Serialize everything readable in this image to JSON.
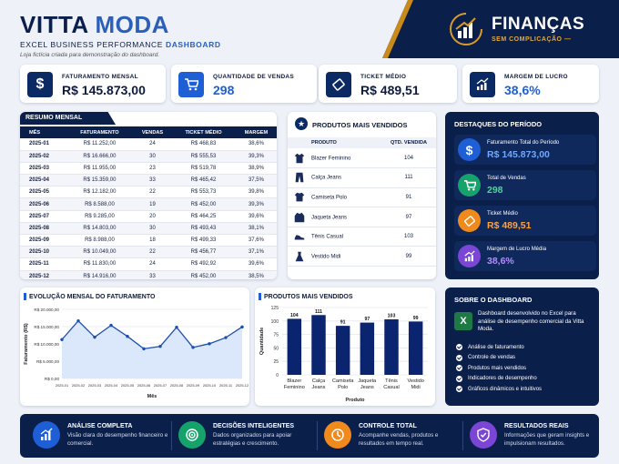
{
  "header": {
    "title_part1": "VITTA",
    "title_part2": "MODA",
    "subtitle_part1": "EXCEL BUSINESS PERFORMANCE",
    "subtitle_part2": "DASHBOARD",
    "note": "Loja fictícia criada para demonstração do dashboard."
  },
  "brand": {
    "title": "FINANÇAS",
    "tagline": "SEM COMPLICAÇÃO"
  },
  "kpis": [
    {
      "label": "FATURAMENTO MENSAL",
      "value": "R$ 145.873,00",
      "icon": "dollar-icon"
    },
    {
      "label": "QUANTIDADE DE VENDAS",
      "value": "298",
      "icon": "cart-icon"
    },
    {
      "label": "TICKET MÉDIO",
      "value": "R$ 489,51",
      "icon": "ticket-icon"
    },
    {
      "label": "MARGEM DE LUCRO",
      "value": "38,6%",
      "icon": "growth-chart-icon"
    }
  ],
  "summary": {
    "title": "RESUMO MENSAL",
    "columns": [
      "MÊS",
      "FATURAMENTO",
      "VENDAS",
      "TICKET MÉDIO",
      "MARGEM"
    ],
    "rows": [
      [
        "2025-01",
        "R$ 11.252,00",
        "24",
        "R$ 468,83",
        "38,6%"
      ],
      [
        "2025-02",
        "R$ 16.666,00",
        "30",
        "R$ 555,53",
        "39,3%"
      ],
      [
        "2025-03",
        "R$ 11.955,00",
        "23",
        "R$ 519,78",
        "38,9%"
      ],
      [
        "2025-04",
        "R$ 15.359,00",
        "33",
        "R$ 465,42",
        "37,5%"
      ],
      [
        "2025-05",
        "R$ 12.182,00",
        "22",
        "R$ 553,73",
        "39,8%"
      ],
      [
        "2025-06",
        "R$ 8.588,00",
        "19",
        "R$ 452,00",
        "39,3%"
      ],
      [
        "2025-07",
        "R$ 9.285,00",
        "20",
        "R$ 464,25",
        "39,6%"
      ],
      [
        "2025-08",
        "R$ 14.803,00",
        "30",
        "R$ 493,43",
        "38,1%"
      ],
      [
        "2025-09",
        "R$ 8.988,00",
        "18",
        "R$ 499,33",
        "37,6%"
      ],
      [
        "2025-10",
        "R$ 10.049,00",
        "22",
        "R$ 456,77",
        "37,1%"
      ],
      [
        "2025-11",
        "R$ 11.830,00",
        "24",
        "R$ 492,92",
        "39,6%"
      ],
      [
        "2025-12",
        "R$ 14.916,00",
        "33",
        "R$ 452,00",
        "38,5%"
      ]
    ]
  },
  "top_products": {
    "title": "PRODUTOS MAIS VENDIDOS",
    "columns": [
      "PRODUTO",
      "QTD. VENDIDA"
    ],
    "rows": [
      {
        "name": "Blazer Feminino",
        "qty": "104",
        "icon": "blazer-icon"
      },
      {
        "name": "Calça Jeans",
        "qty": "111",
        "icon": "jeans-icon"
      },
      {
        "name": "Camiseta Polo",
        "qty": "91",
        "icon": "polo-shirt-icon"
      },
      {
        "name": "Jaqueta Jeans",
        "qty": "97",
        "icon": "jacket-icon"
      },
      {
        "name": "Tênis Casual",
        "qty": "103",
        "icon": "sneaker-icon"
      },
      {
        "name": "Vestido Midi",
        "qty": "99",
        "icon": "dress-icon"
      }
    ]
  },
  "highlights": {
    "title": "DESTAQUES DO PERÍODO",
    "items": [
      {
        "label": "Faturamento Total do Período",
        "value": "R$ 145.873,00",
        "color": "#1f5fd6",
        "valcolor": "#6fa8ff",
        "icon": "dollar-icon"
      },
      {
        "label": "Total de Vendas",
        "value": "298",
        "color": "#16a36b",
        "valcolor": "#4fd49a",
        "icon": "cart-icon"
      },
      {
        "label": "Ticket Médio",
        "value": "R$ 489,51",
        "color": "#f08a1c",
        "valcolor": "#ffa23a",
        "icon": "ticket-icon"
      },
      {
        "label": "Margem de Lucro Média",
        "value": "38,6%",
        "color": "#7b45d6",
        "valcolor": "#b48cff",
        "icon": "growth-chart-icon"
      }
    ]
  },
  "line_chart": {
    "title": "EVOLUÇÃO MENSAL DO FATURAMENTO"
  },
  "bar_chart": {
    "title": "PRODUTOS MAIS VENDIDOS"
  },
  "chart_data": [
    {
      "type": "line",
      "title": "EVOLUÇÃO MENSAL DO FATURAMENTO",
      "xlabel": "Mês",
      "ylabel": "Faturamento (R$)",
      "x": [
        "2025-01",
        "2025-02",
        "2025-03",
        "2025-04",
        "2025-05",
        "2025-06",
        "2025-07",
        "2025-08",
        "2025-09",
        "2025-10",
        "2025-11",
        "2025-12"
      ],
      "values": [
        11252,
        16666,
        11955,
        15359,
        12182,
        8588,
        9285,
        14803,
        8988,
        10049,
        11830,
        14916
      ],
      "yticks": [
        "R$ 0,00",
        "R$ 5.000,00",
        "R$ 10.000,00",
        "R$ 15.000,00",
        "R$ 20.000,00"
      ],
      "ylim": [
        0,
        20000
      ],
      "grid": true
    },
    {
      "type": "bar",
      "title": "PRODUTOS MAIS VENDIDOS",
      "xlabel": "Produto",
      "ylabel": "Quantidade",
      "categories": [
        [
          "Blazer",
          "Feminino"
        ],
        [
          "Calça",
          "Jeans"
        ],
        [
          "Camiseta",
          "Polo"
        ],
        [
          "Jaqueta",
          "Jeans"
        ],
        [
          "Tênis",
          "Casual"
        ],
        [
          "Vestido",
          "Midi"
        ]
      ],
      "values": [
        104,
        111,
        91,
        97,
        103,
        99
      ],
      "yticks": [
        "0",
        "25",
        "50",
        "75",
        "100",
        "125"
      ],
      "ylim": [
        0,
        125
      ],
      "grid": true
    }
  ],
  "about": {
    "title": "SOBRE O DASHBOARD",
    "description": "Dashboard desenvolvido no Excel para análise de desempenho comercial da Vitta Moda.",
    "items": [
      "Análise de faturamento",
      "Controle de vendas",
      "Produtos mais vendidos",
      "Indicadores de desempenho",
      "Gráficos dinâmicos e intuitivos"
    ]
  },
  "bottom": [
    {
      "title": "ANÁLISE COMPLETA",
      "desc": "Visão clara do desempenho financeiro e comercial.",
      "color": "#1f5fd6",
      "icon": "bar-growth-icon"
    },
    {
      "title": "DECISÕES INTELIGENTES",
      "desc": "Dados organizados para apoiar estratégias e crescimento.",
      "color": "#16a36b",
      "icon": "target-icon"
    },
    {
      "title": "CONTROLE TOTAL",
      "desc": "Acompanhe vendas, produtos e resultados em tempo real.",
      "color": "#f08a1c",
      "icon": "clock-icon"
    },
    {
      "title": "RESULTADOS REAIS",
      "desc": "Informações que geram insights e impulsionam resultados.",
      "color": "#7b45d6",
      "icon": "shield-icon"
    }
  ]
}
